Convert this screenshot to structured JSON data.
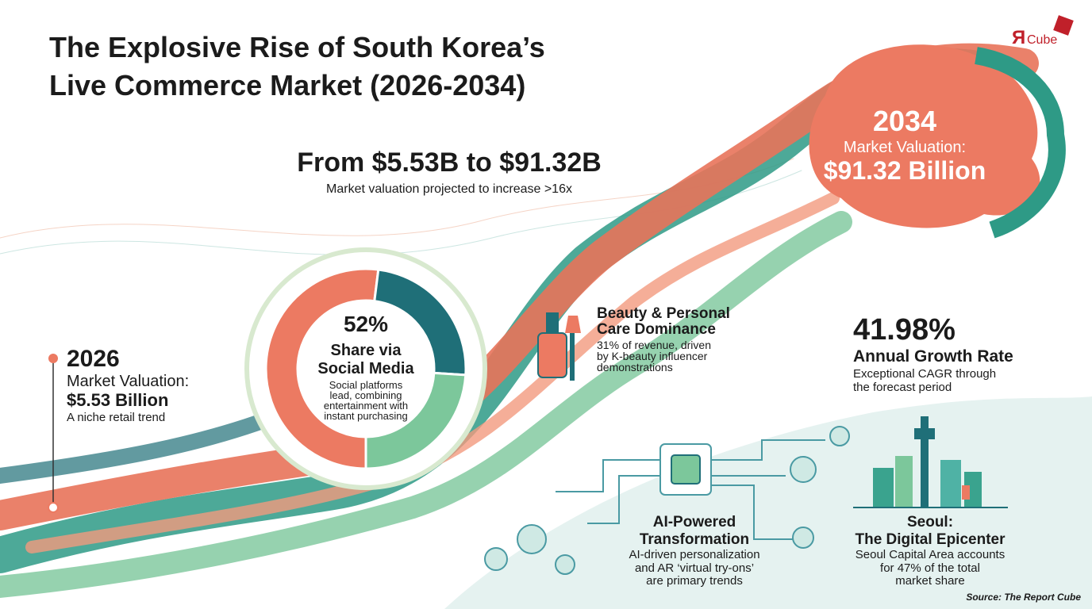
{
  "header": {
    "title_line1": "The Explosive Rise of South Korea’s",
    "title_line2": "Live Commerce Market (2026-2034)",
    "logo_mark": "Я",
    "logo": "Cube"
  },
  "headline": {
    "title": "From $5.53B to $91.32B",
    "subtitle": "Market valuation projected to increase >16x"
  },
  "start": {
    "year": "2026",
    "label": "Market Valuation:",
    "value": "$5.53 Billion",
    "note": "A niche retail trend"
  },
  "end": {
    "year": "2034",
    "label": "Market Valuation:",
    "value": "$91.32 Billion"
  },
  "donut": {
    "share": {
      "value": 52,
      "label": "52%"
    },
    "title": [
      "Share via",
      "Social Media"
    ],
    "text": [
      "Social platforms",
      "lead, combining",
      "entertainment with",
      "instant purchasing"
    ]
  },
  "beauty": {
    "title": [
      "Beauty & Personal",
      "Care Dominance"
    ],
    "text": [
      "31% of revenue, driven",
      "by K-beauty influencer",
      "demonstrations"
    ]
  },
  "growth": {
    "value": "41.98%",
    "title": "Annual Growth Rate",
    "text": [
      "Exceptional CAGR through",
      "the forecast period"
    ]
  },
  "ai": {
    "title": [
      "AI-Powered",
      "Transformation"
    ],
    "text": [
      "AI-driven personalization",
      "and AR ‘virtual try-ons’",
      "are primary trends"
    ]
  },
  "seoul": {
    "title": [
      "Seoul:",
      "The Digital Epicenter"
    ],
    "text": [
      "Seoul Capital Area accounts",
      "for 47% of the total",
      "market share"
    ]
  },
  "source": "Source: The Report Cube"
}
